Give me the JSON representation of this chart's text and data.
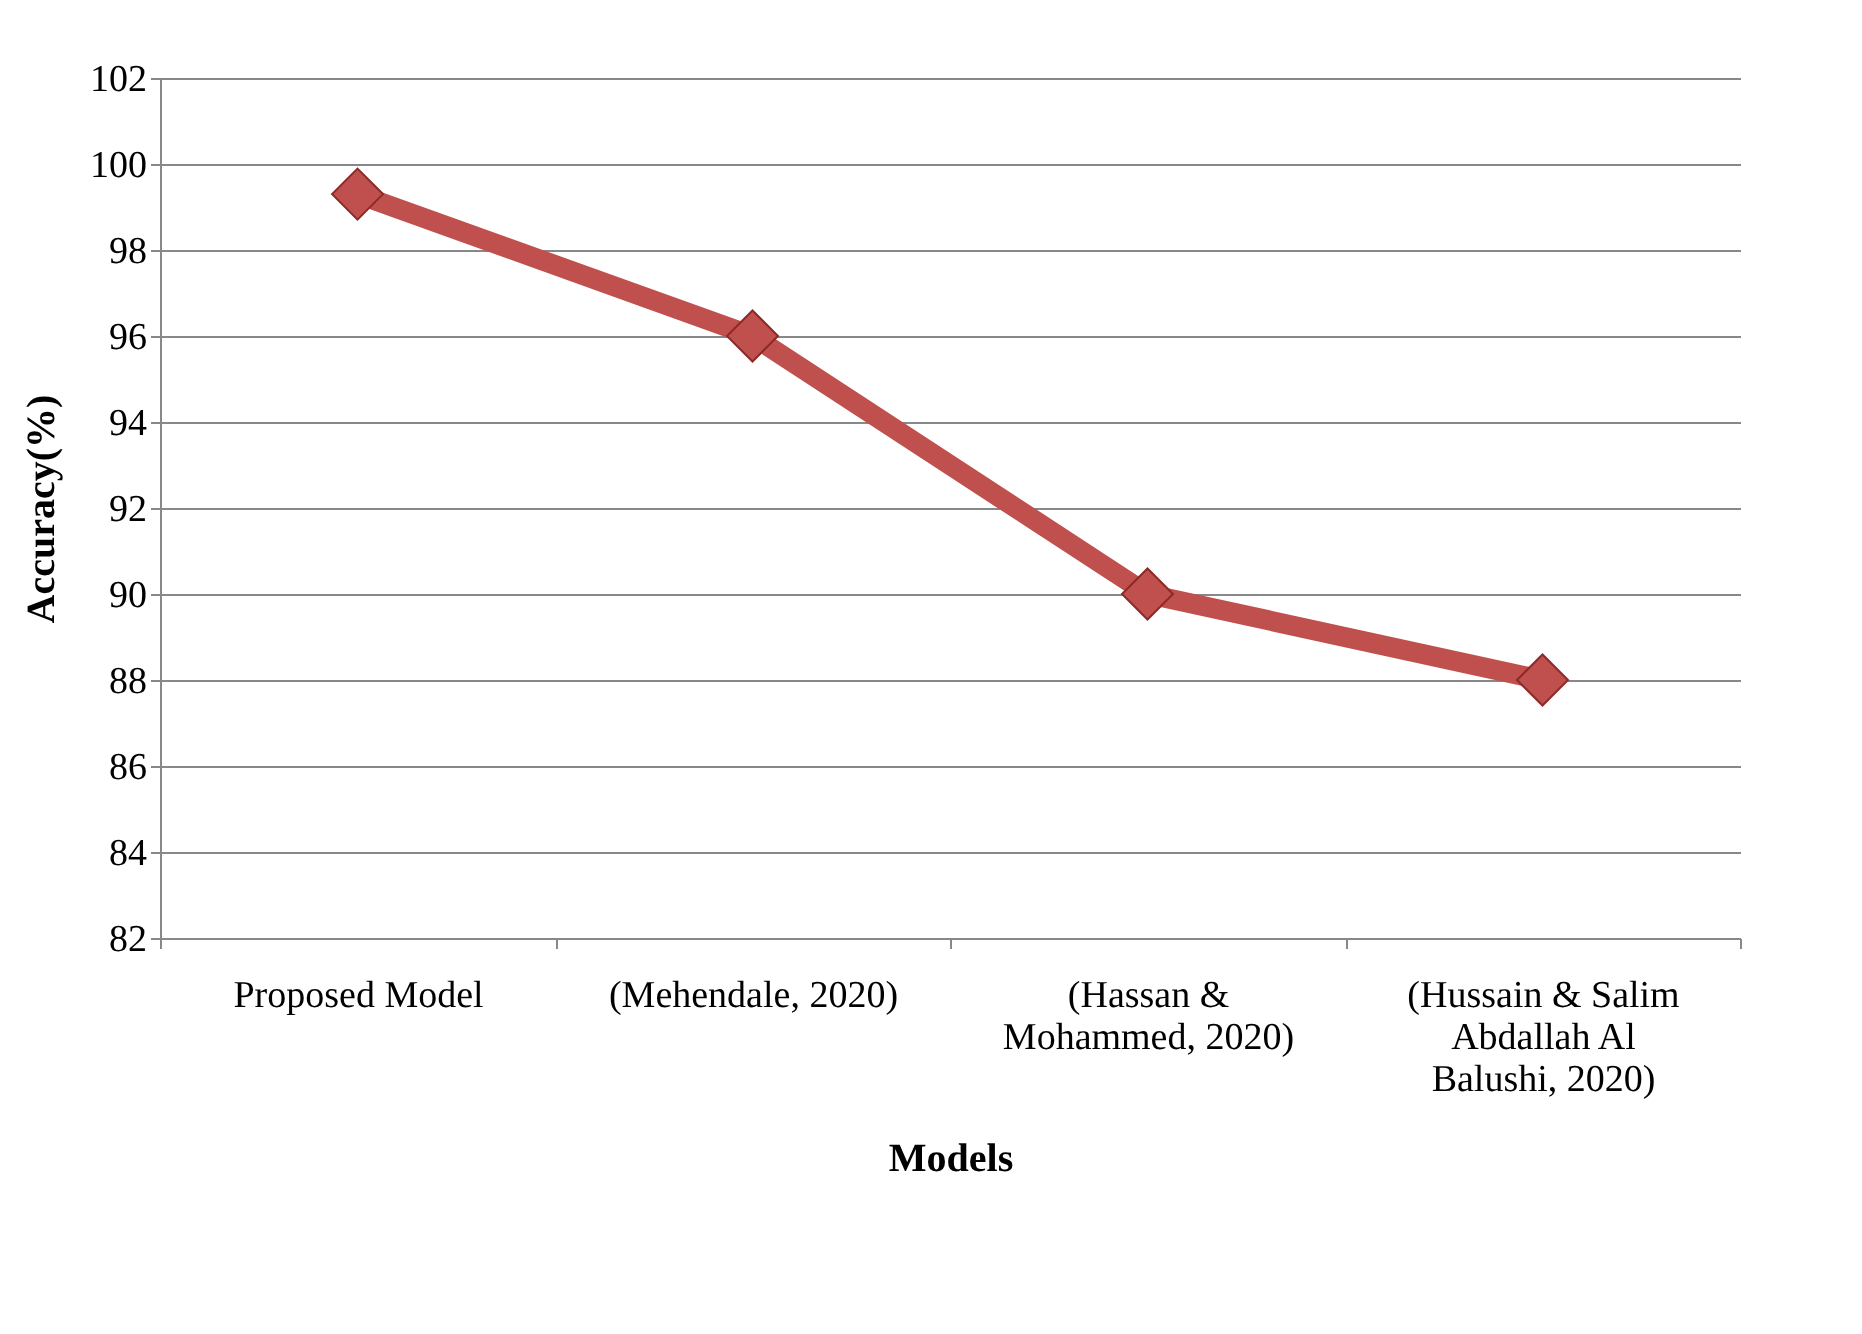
{
  "chart_data": {
    "type": "line",
    "xlabel": "Models",
    "ylabel": "Accuracy(%)",
    "categories": [
      "Proposed Model",
      "(Mehendale, 2020)",
      "(Hassan &\nMohammed, 2020)",
      "(Hussain & Salim\nAbdallah Al\nBalushi, 2020)"
    ],
    "series": [
      {
        "color": "#c0504d",
        "values": [
          99.3,
          96,
          90,
          88
        ]
      }
    ],
    "ylim": [
      82,
      102
    ],
    "yticks": [
      82,
      84,
      86,
      88,
      90,
      92,
      94,
      96,
      98,
      100,
      102
    ],
    "grid": "y",
    "legend": false,
    "marker": "diamond",
    "line_style": "solid"
  }
}
